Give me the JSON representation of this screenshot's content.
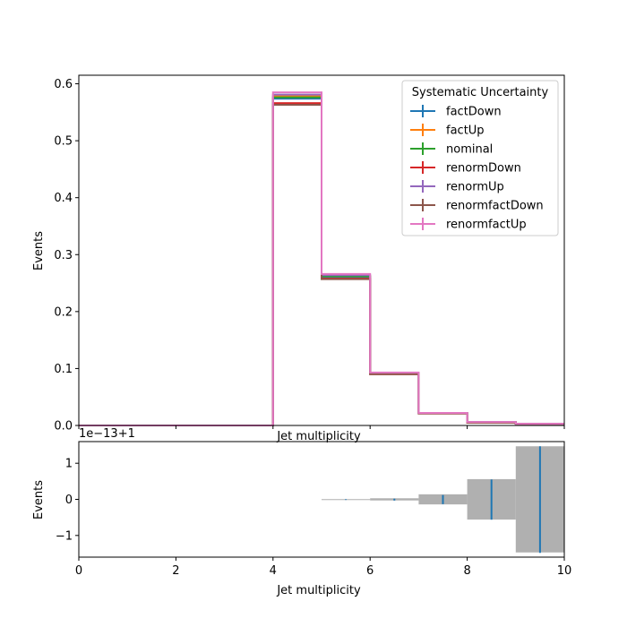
{
  "chart_data": [
    {
      "type": "step",
      "panel": "main",
      "xlabel": "Jet multiplicity",
      "ylabel": "Events",
      "xlim": [
        0,
        10
      ],
      "ylim": [
        0,
        0.615
      ],
      "yticks": [
        "0.0",
        "0.1",
        "0.2",
        "0.3",
        "0.4",
        "0.5",
        "0.6"
      ],
      "bin_edges": [
        0,
        1,
        2,
        3,
        4,
        5,
        6,
        7,
        8,
        9,
        10
      ],
      "legend": {
        "title": "Systematic Uncertainty",
        "placement": "upper right"
      },
      "series": [
        {
          "name": "factDown",
          "color": "#1f77b4",
          "values": [
            0,
            0,
            0,
            0,
            0.574,
            0.261,
            0.091,
            0.022,
            0.006,
            0.003
          ]
        },
        {
          "name": "factUp",
          "color": "#ff7f0e",
          "values": [
            0,
            0,
            0,
            0,
            0.578,
            0.262,
            0.092,
            0.022,
            0.006,
            0.003
          ]
        },
        {
          "name": "nominal",
          "color": "#2ca02c",
          "values": [
            0,
            0,
            0,
            0,
            0.576,
            0.262,
            0.091,
            0.022,
            0.006,
            0.003
          ]
        },
        {
          "name": "renormDown",
          "color": "#d62728",
          "values": [
            0,
            0,
            0,
            0,
            0.566,
            0.258,
            0.09,
            0.021,
            0.005,
            0.003
          ]
        },
        {
          "name": "renormUp",
          "color": "#9467bd",
          "values": [
            0,
            0,
            0,
            0,
            0.581,
            0.264,
            0.092,
            0.022,
            0.006,
            0.003
          ]
        },
        {
          "name": "renormfactDown",
          "color": "#8c564b",
          "values": [
            0,
            0,
            0,
            0,
            0.563,
            0.257,
            0.09,
            0.021,
            0.005,
            0.003
          ]
        },
        {
          "name": "renormfactUp",
          "color": "#e377c2",
          "values": [
            0,
            0,
            0,
            0,
            0.585,
            0.266,
            0.093,
            0.022,
            0.006,
            0.003
          ]
        }
      ]
    },
    {
      "type": "ratio",
      "panel": "ratio",
      "xlabel": "Jet multiplicity",
      "ylabel": "Events",
      "offset_label": "1e−13+1",
      "xlim": [
        0,
        10
      ],
      "ylim": [
        -1.6,
        1.6
      ],
      "xticks": [
        "0",
        "2",
        "4",
        "6",
        "8",
        "10"
      ],
      "yticks": [
        "−1",
        "0",
        "1"
      ],
      "band_halfwidth": [
        0,
        0,
        0,
        0,
        0,
        0.006,
        0.03,
        0.14,
        0.56,
        1.47
      ],
      "error_halfwidth": [
        0,
        0,
        0,
        0,
        0,
        0.003,
        0.02,
        0.12,
        0.55,
        1.47
      ],
      "band_color": "#b0b0b0",
      "error_color": "#1f77b4"
    }
  ]
}
